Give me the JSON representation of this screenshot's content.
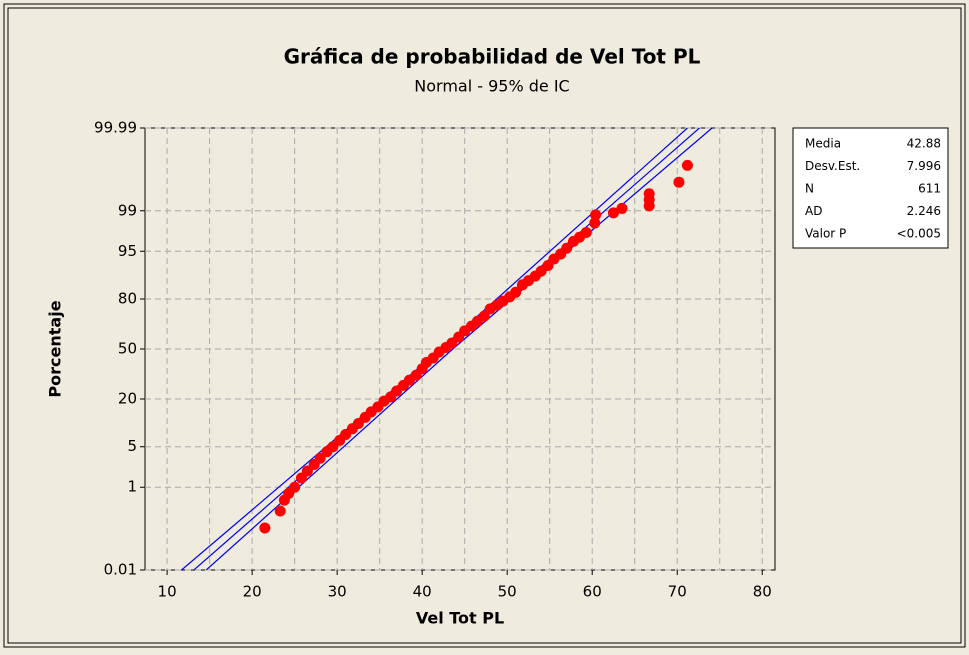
{
  "chart_data": {
    "type": "probability",
    "title": "Gráfica de probabilidad de Vel Tot PL",
    "subtitle": "Normal - 95% de IC",
    "xlabel": "Vel Tot PL",
    "ylabel": "Porcentaje",
    "xlim": [
      7.4,
      81.5
    ],
    "ylim": [
      0.01,
      99.99
    ],
    "xticks": [
      10,
      20,
      30,
      40,
      50,
      60,
      70,
      80
    ],
    "xgrid": [
      10,
      15,
      20,
      25,
      30,
      35,
      40,
      45,
      50,
      55,
      60,
      65,
      70,
      75,
      80
    ],
    "yticks": [
      0.01,
      1,
      5,
      20,
      50,
      80,
      95,
      99,
      99.99
    ],
    "grid": true,
    "scale": "normal-probability",
    "point_color": "#ff0000",
    "line_color": "#0000ff",
    "points": {
      "x": [
        21.5,
        23.3,
        23.8,
        24.3,
        25.0,
        25.8,
        26.5,
        27.3,
        28.0,
        28.8,
        29.5,
        30.3,
        31.0,
        31.8,
        32.5,
        33.3,
        34.0,
        34.8,
        35.5,
        36.3,
        37.0,
        37.8,
        38.5,
        39.3,
        40.0,
        40.5,
        41.3,
        42.0,
        42.8,
        43.5,
        44.3,
        45.0,
        45.8,
        46.5,
        47.3,
        48.0,
        48.8,
        49.5,
        50.3,
        51.0,
        51.8,
        52.5,
        53.3,
        54.0,
        54.8,
        55.5,
        56.3,
        57.0,
        57.8,
        58.5,
        59.3,
        60.3,
        60.4,
        62.5,
        63.5,
        66.7,
        66.7,
        66.7,
        70.2,
        71.2
      ],
      "values": [
        0.13,
        0.32,
        0.55,
        0.75,
        1.0,
        1.5,
        2.0,
        2.6,
        3.3,
        4.2,
        5.0,
        6.2,
        7.5,
        9.0,
        10.5,
        12.5,
        14.5,
        16.5,
        19,
        21,
        24,
        27,
        30,
        33,
        37,
        41,
        44,
        48,
        51,
        54,
        58,
        62,
        65,
        68,
        71,
        75,
        77,
        79,
        81,
        83,
        86,
        87.5,
        89,
        90.5,
        92,
        93.5,
        94.5,
        95.5,
        96.5,
        97,
        97.5,
        98.3,
        98.8,
        98.9,
        99.1,
        99.2,
        99.4,
        99.55,
        99.75,
        99.9
      ]
    },
    "ci_bands": [
      {
        "x": [
          11.7,
          42.2,
          71.2
        ],
        "values": [
          0.01,
          50,
          99.99
        ]
      },
      {
        "x": [
          14.6,
          43.6,
          74.1
        ],
        "values": [
          0.01,
          50,
          99.99
        ]
      }
    ],
    "stats": [
      {
        "label": "Media",
        "value": 42.88
      },
      {
        "label": "Desv.Est.",
        "value": 7.996
      },
      {
        "label": "N",
        "value": 611
      },
      {
        "label": "AD",
        "value": 2.246
      },
      {
        "label": "Valor P",
        "value": "<0.005"
      }
    ]
  }
}
